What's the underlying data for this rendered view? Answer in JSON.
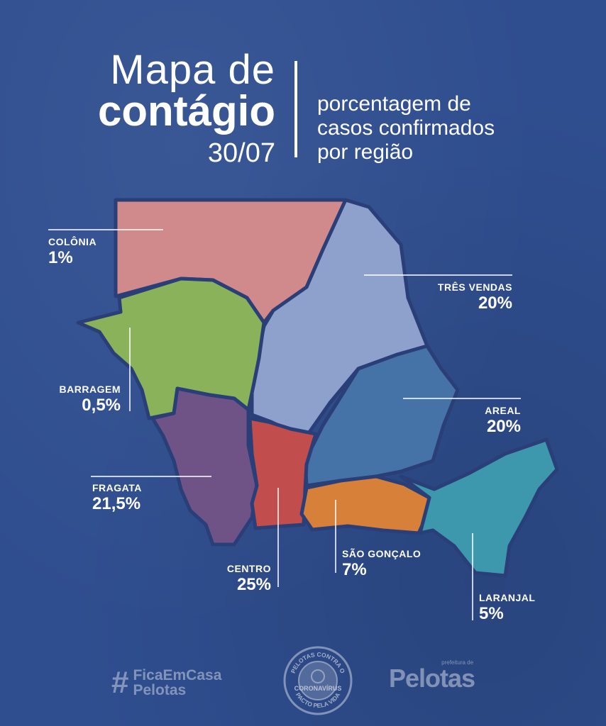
{
  "header": {
    "title_line1": "Mapa de",
    "title_line2": "contágio",
    "date": "30/07",
    "subtitle_lines": [
      "porcentagem de",
      "casos confirmados",
      "por região"
    ]
  },
  "regions": [
    {
      "id": "colonia",
      "name": "COLÔNIA",
      "percent": "1%",
      "value": 1,
      "color": "#d08a8c"
    },
    {
      "id": "tres-vendas",
      "name": "TRÊS VENDAS",
      "percent": "20%",
      "value": 20,
      "color": "#8ea1cd"
    },
    {
      "id": "barragem",
      "name": "BARRAGEM",
      "percent": "0,5%",
      "value": 0.5,
      "color": "#8ab25a"
    },
    {
      "id": "areal",
      "name": "AREAL",
      "percent": "20%",
      "value": 20,
      "color": "#4673a7"
    },
    {
      "id": "fragata",
      "name": "FRAGATA",
      "percent": "21,5%",
      "value": 21.5,
      "color": "#6f5387"
    },
    {
      "id": "centro",
      "name": "CENTRO",
      "percent": "25%",
      "value": 25,
      "color": "#c14d4d"
    },
    {
      "id": "sao-goncalo",
      "name": "SÃO GONÇALO",
      "percent": "7%",
      "value": 7,
      "color": "#d7803a"
    },
    {
      "id": "laranjal",
      "name": "LARANJAL",
      "percent": "5%",
      "value": 5,
      "color": "#3d98ad"
    }
  ],
  "footer": {
    "hashtag_line1": "FicaEmCasa",
    "hashtag_line2": "Pelotas",
    "seal_top": "PELOTAS CONTRA O",
    "seal_center": "CORONAVÍRUS",
    "seal_bottom": "PACTO PELA VIDA",
    "brand_small": "prefeitura de",
    "brand_name": "Pelotas"
  },
  "colors": {
    "background": "#2f4e8f",
    "border": "#2a3f78",
    "text": "#ffffff"
  }
}
